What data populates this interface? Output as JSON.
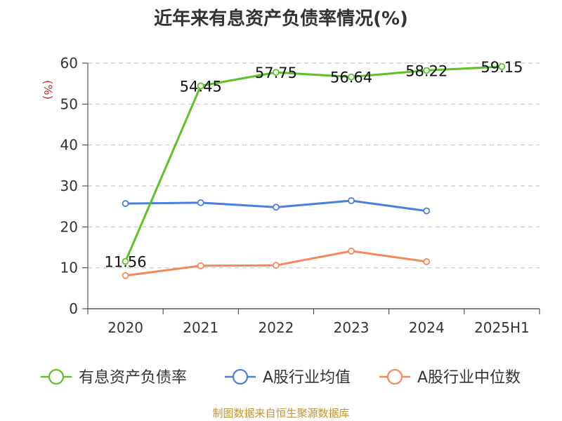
{
  "chart_data": {
    "type": "line",
    "title": "近年来有息资产负债率情况(%)",
    "ylabel": "(%)",
    "categories": [
      "2020",
      "2021",
      "2022",
      "2023",
      "2024",
      "2025H1"
    ],
    "ylim": [
      0,
      60
    ],
    "yticks": [
      0,
      10,
      20,
      30,
      40,
      50,
      60
    ],
    "grid": true,
    "legend_position": "bottom",
    "series": [
      {
        "name": "有息资产负债率",
        "color": "#5bc225",
        "values": [
          11.56,
          54.45,
          57.75,
          56.64,
          58.22,
          59.15
        ],
        "labels": [
          "11.56",
          "54.45",
          "57.75",
          "56.64",
          "58.22",
          "59.15"
        ]
      },
      {
        "name": "A股行业均值",
        "color": "#4a7fdc",
        "values": [
          25.7,
          25.9,
          24.8,
          26.4,
          23.9,
          null
        ]
      },
      {
        "name": "A股行业中位数",
        "color": "#f4885a",
        "values": [
          8.1,
          10.5,
          10.6,
          14.1,
          11.5,
          null
        ]
      }
    ]
  },
  "footer": {
    "source": "制图数据来自恒生聚源数据库"
  }
}
